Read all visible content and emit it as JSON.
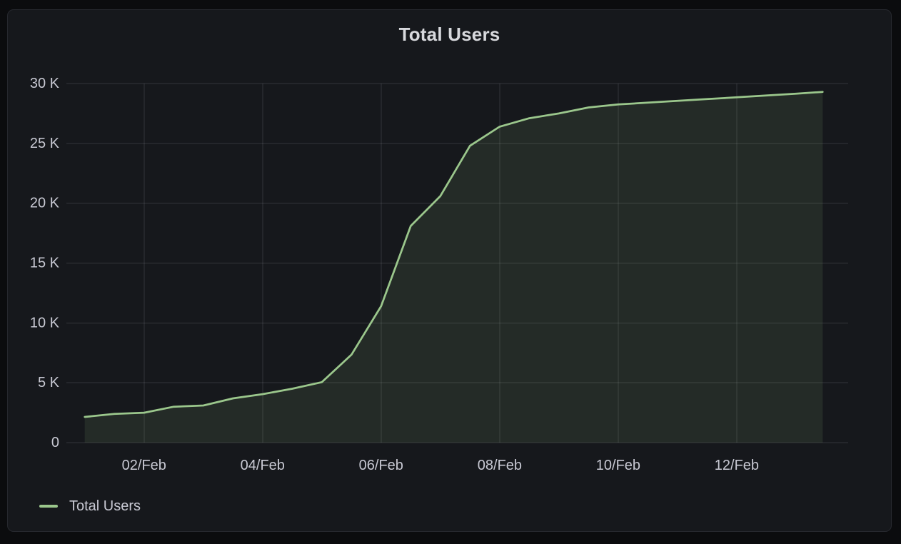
{
  "panel": {
    "title": "Total Users"
  },
  "legend": {
    "position": "bottom-left",
    "items": [
      {
        "label": "Total Users",
        "color": "#9BC78C"
      }
    ]
  },
  "colors": {
    "page_background": "#0B0C0E",
    "panel_background": "#16181C",
    "panel_border": "#26282E",
    "grid": "rgba(204,204,220,0.16)",
    "axis_text": "#C8C9D3",
    "title_text": "#D8D9DD",
    "series_green": "#9BC78C"
  },
  "chart_data": {
    "type": "area",
    "title": "Total Users",
    "grid": true,
    "legend_position": "bottom-left",
    "x_axis": {
      "unit": "date (day of February)",
      "domain": [
        0.69,
        13.88
      ],
      "ticks": [
        {
          "day": 2,
          "label": "02/Feb"
        },
        {
          "day": 4,
          "label": "04/Feb"
        },
        {
          "day": 6,
          "label": "06/Feb"
        },
        {
          "day": 8,
          "label": "08/Feb"
        },
        {
          "day": 10,
          "label": "10/Feb"
        },
        {
          "day": 12,
          "label": "12/Feb"
        }
      ]
    },
    "y_axis": {
      "unit": "users",
      "domain": [
        0,
        30000
      ],
      "ticks": [
        {
          "value": 0,
          "label": "0"
        },
        {
          "value": 5000,
          "label": "5 K"
        },
        {
          "value": 10000,
          "label": "10 K"
        },
        {
          "value": 15000,
          "label": "15 K"
        },
        {
          "value": 20000,
          "label": "20 K"
        },
        {
          "value": 25000,
          "label": "25 K"
        },
        {
          "value": 30000,
          "label": "30 K"
        }
      ]
    },
    "series": [
      {
        "name": "Total Users",
        "color": "#9BC78C",
        "fill_opacity": 0.11,
        "line_width": 2.75,
        "points": [
          {
            "day_of_feb": 1.0,
            "value": 2150
          },
          {
            "day_of_feb": 1.5,
            "value": 2400
          },
          {
            "day_of_feb": 2.0,
            "value": 2500
          },
          {
            "day_of_feb": 2.5,
            "value": 3000
          },
          {
            "day_of_feb": 3.0,
            "value": 3100
          },
          {
            "day_of_feb": 3.5,
            "value": 3700
          },
          {
            "day_of_feb": 4.0,
            "value": 4050
          },
          {
            "day_of_feb": 4.5,
            "value": 4500
          },
          {
            "day_of_feb": 5.0,
            "value": 5050
          },
          {
            "day_of_feb": 5.5,
            "value": 7350
          },
          {
            "day_of_feb": 6.0,
            "value": 11400
          },
          {
            "day_of_feb": 6.5,
            "value": 18100
          },
          {
            "day_of_feb": 7.0,
            "value": 20600
          },
          {
            "day_of_feb": 7.5,
            "value": 24800
          },
          {
            "day_of_feb": 8.0,
            "value": 26400
          },
          {
            "day_of_feb": 8.5,
            "value": 27100
          },
          {
            "day_of_feb": 9.0,
            "value": 27500
          },
          {
            "day_of_feb": 9.5,
            "value": 28000
          },
          {
            "day_of_feb": 10.0,
            "value": 28250
          },
          {
            "day_of_feb": 10.5,
            "value": 28400
          },
          {
            "day_of_feb": 11.0,
            "value": 28550
          },
          {
            "day_of_feb": 11.5,
            "value": 28700
          },
          {
            "day_of_feb": 12.0,
            "value": 28850
          },
          {
            "day_of_feb": 12.5,
            "value": 29000
          },
          {
            "day_of_feb": 13.0,
            "value": 29150
          },
          {
            "day_of_feb": 13.45,
            "value": 29300
          }
        ]
      }
    ]
  }
}
